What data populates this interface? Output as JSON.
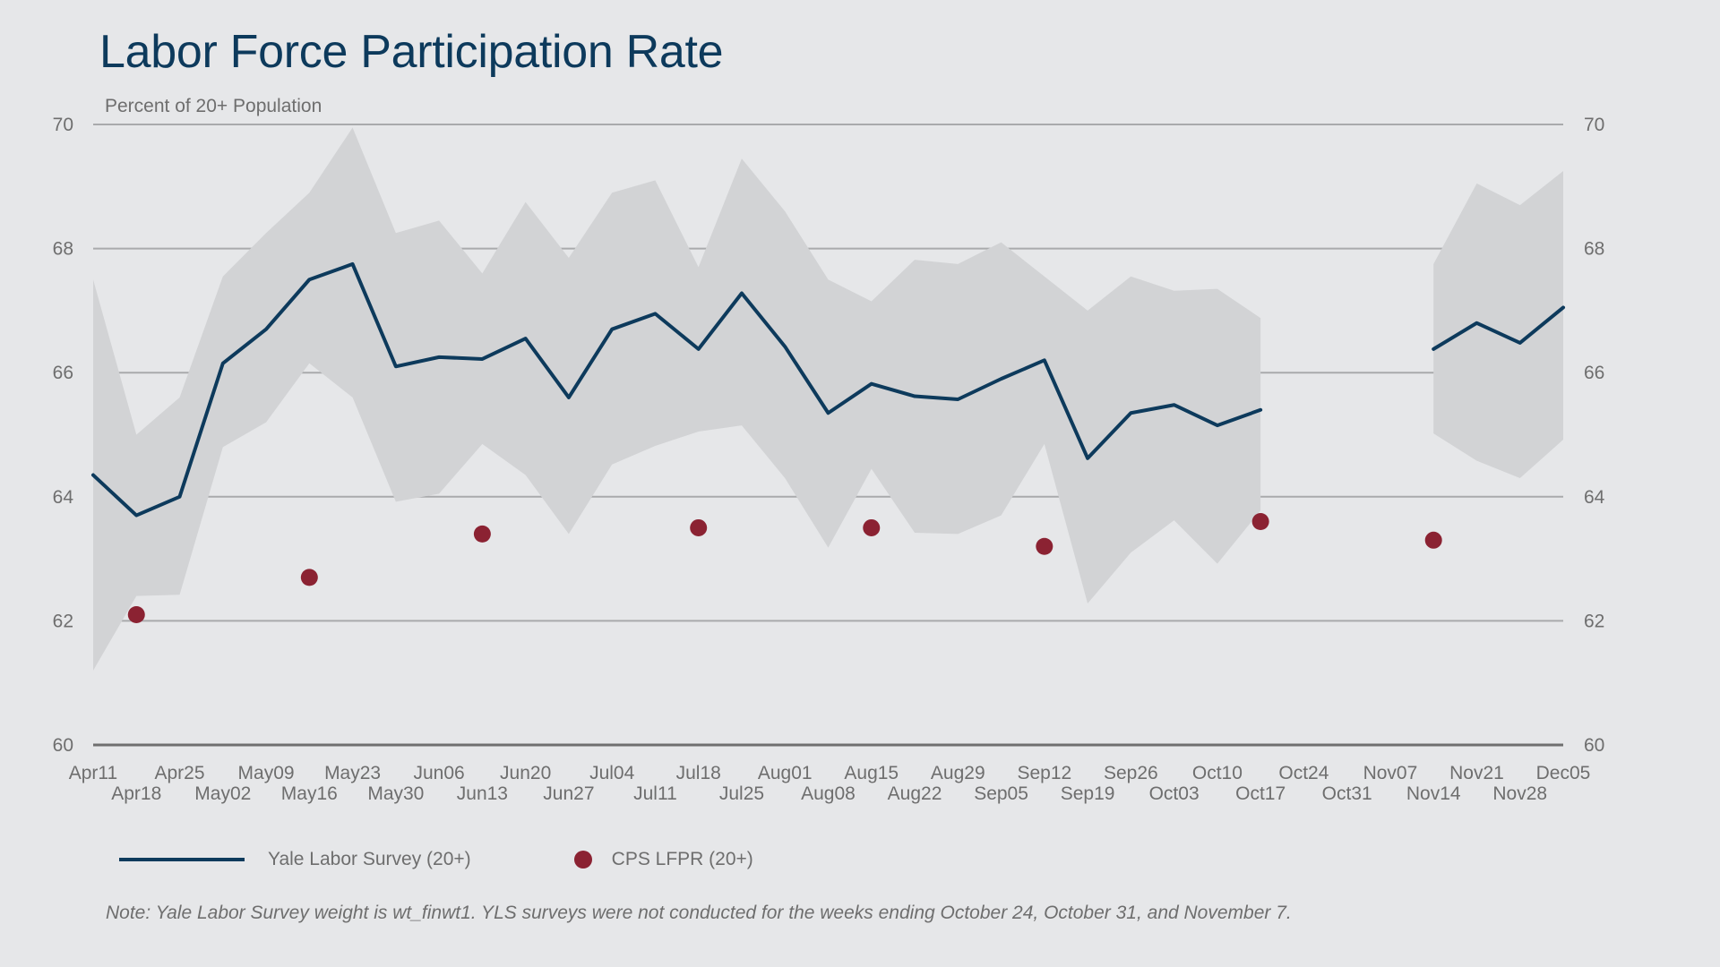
{
  "chart_data": {
    "type": "line",
    "title": "Labor Force Participation Rate",
    "subtitle": "Percent of 20+ Population",
    "ylim": [
      60,
      70
    ],
    "yticks": [
      60,
      62,
      64,
      66,
      68,
      70
    ],
    "secondary_y_axis": true,
    "grid": "horizontal",
    "legend_position": "bottom-left",
    "x": [
      "Apr11",
      "Apr18",
      "Apr25",
      "May02",
      "May09",
      "May16",
      "May23",
      "May30",
      "Jun06",
      "Jun13",
      "Jun20",
      "Jun27",
      "Jul04",
      "Jul11",
      "Jul18",
      "Jul25",
      "Aug01",
      "Aug08",
      "Aug15",
      "Aug22",
      "Aug29",
      "Sep05",
      "Sep12",
      "Sep19",
      "Sep26",
      "Oct03",
      "Oct10",
      "Oct17",
      "Oct24",
      "Oct31",
      "Nov07",
      "Nov14",
      "Nov21",
      "Nov28",
      "Dec05"
    ],
    "series": [
      {
        "name": "Yale Labor Survey (20+)",
        "type": "line",
        "color": "#0d3a5c",
        "values": [
          64.35,
          63.7,
          64.0,
          66.15,
          66.7,
          67.5,
          67.75,
          66.1,
          66.25,
          66.22,
          66.55,
          65.6,
          66.7,
          66.95,
          66.38,
          67.28,
          66.42,
          65.35,
          65.82,
          65.62,
          65.57,
          65.9,
          66.2,
          64.62,
          65.35,
          65.48,
          65.15,
          65.4,
          null,
          null,
          null,
          66.38,
          66.8,
          66.48,
          67.05
        ]
      },
      {
        "name": "confidence band",
        "type": "area",
        "color": "#d2d3d5",
        "upper": [
          67.5,
          65.0,
          65.6,
          67.55,
          68.25,
          68.9,
          69.95,
          68.25,
          68.45,
          67.6,
          68.75,
          67.85,
          68.9,
          69.1,
          67.7,
          69.45,
          68.6,
          67.5,
          67.15,
          67.82,
          67.75,
          68.1,
          67.55,
          67.0,
          67.55,
          67.32,
          67.35,
          66.88,
          null,
          null,
          null,
          67.75,
          69.05,
          68.7,
          69.25
        ],
        "lower": [
          61.2,
          62.4,
          62.42,
          64.8,
          65.2,
          66.15,
          65.6,
          63.92,
          64.05,
          64.85,
          64.35,
          63.4,
          64.52,
          64.82,
          65.05,
          65.15,
          64.3,
          63.18,
          64.45,
          63.42,
          63.4,
          63.7,
          64.85,
          62.28,
          63.1,
          63.62,
          62.92,
          63.78,
          null,
          null,
          null,
          65.02,
          64.58,
          64.3,
          64.92
        ]
      },
      {
        "name": "CPS LFPR (20+)",
        "type": "scatter",
        "color": "#8b2232",
        "points": [
          {
            "x": "Apr18",
            "y": 62.1
          },
          {
            "x": "May16",
            "y": 62.7
          },
          {
            "x": "Jun13",
            "y": 63.4
          },
          {
            "x": "Jul18",
            "y": 63.5
          },
          {
            "x": "Aug15",
            "y": 63.5
          },
          {
            "x": "Sep12",
            "y": 63.2
          },
          {
            "x": "Oct17",
            "y": 63.6
          },
          {
            "x": "Nov14",
            "y": 63.3
          }
        ]
      }
    ],
    "note": "Note: Yale Labor Survey weight is wt_finwt1. YLS surveys were not conducted for the weeks ending October 24, October 31, and November 7."
  }
}
